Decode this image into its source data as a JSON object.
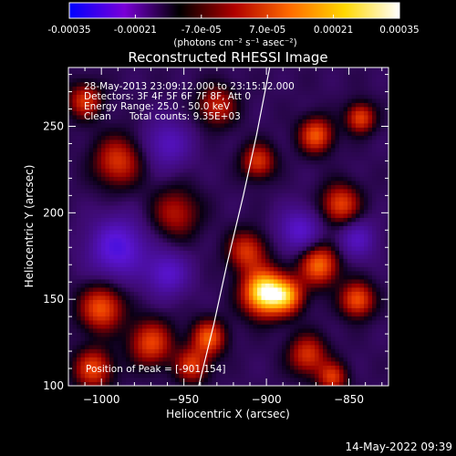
{
  "colorbar": {
    "tick_labels": [
      "-0.00035",
      "-0.00021",
      "-7.0e-05",
      "7.0e-05",
      "0.00021",
      "0.00035"
    ],
    "tick_values": [
      -0.00035,
      -0.00021,
      -7e-05,
      7e-05,
      0.00021,
      0.00035
    ],
    "range": [
      -0.00035,
      0.00035
    ],
    "unit_label": "(photons cm⁻² s⁻¹ asec⁻²)",
    "colors": [
      "#0000ff",
      "#7a00d8",
      "#000000",
      "#b00000",
      "#ff6a00",
      "#ffd800",
      "#ffffff"
    ]
  },
  "chart_data": {
    "type": "heatmap",
    "title": "Reconstructed RHESSI Image",
    "xlabel": "Heliocentric X (arcsec)",
    "ylabel": "Heliocentric Y (arcsec)",
    "xlim": [
      -1020,
      -826
    ],
    "ylim": [
      100,
      284
    ],
    "xticks": [
      -1000,
      -950,
      -900,
      -850
    ],
    "yticks": [
      100,
      150,
      200,
      250
    ],
    "xtick_labels": [
      "−1000",
      "−950",
      "−900",
      "−850"
    ],
    "ytick_labels": [
      "100",
      "150",
      "200",
      "250"
    ],
    "limb_line": [
      [
        -941,
        100
      ],
      [
        -932,
        135
      ],
      [
        -924,
        170
      ],
      [
        -914,
        210
      ],
      [
        -906,
        245
      ],
      [
        -898,
        284
      ]
    ],
    "sources": [
      {
        "x": -901,
        "y": 154,
        "amp": 1.0,
        "sigma": 9
      },
      {
        "x": -887,
        "y": 152,
        "amp": 0.55,
        "sigma": 7
      },
      {
        "x": -912,
        "y": 178,
        "amp": 0.45,
        "sigma": 8
      },
      {
        "x": -868,
        "y": 170,
        "amp": 0.6,
        "sigma": 8
      },
      {
        "x": -845,
        "y": 150,
        "amp": 0.55,
        "sigma": 7
      },
      {
        "x": -855,
        "y": 205,
        "amp": 0.5,
        "sigma": 8
      },
      {
        "x": -870,
        "y": 245,
        "amp": 0.55,
        "sigma": 7
      },
      {
        "x": -843,
        "y": 255,
        "amp": 0.5,
        "sigma": 6
      },
      {
        "x": -935,
        "y": 128,
        "amp": 0.55,
        "sigma": 7
      },
      {
        "x": -945,
        "y": 112,
        "amp": 0.45,
        "sigma": 7
      },
      {
        "x": -970,
        "y": 125,
        "amp": 0.5,
        "sigma": 9
      },
      {
        "x": -1000,
        "y": 145,
        "amp": 0.55,
        "sigma": 9
      },
      {
        "x": -1005,
        "y": 110,
        "amp": 0.5,
        "sigma": 8
      },
      {
        "x": -990,
        "y": 230,
        "amp": 0.45,
        "sigma": 10
      },
      {
        "x": -1010,
        "y": 265,
        "amp": 0.45,
        "sigma": 7
      },
      {
        "x": -930,
        "y": 262,
        "amp": 0.4,
        "sigma": 8
      },
      {
        "x": -905,
        "y": 230,
        "amp": 0.45,
        "sigma": 7
      },
      {
        "x": -875,
        "y": 118,
        "amp": 0.45,
        "sigma": 8
      },
      {
        "x": -860,
        "y": 105,
        "amp": 0.45,
        "sigma": 6
      },
      {
        "x": -955,
        "y": 200,
        "amp": 0.35,
        "sigma": 10
      },
      {
        "x": -990,
        "y": 180,
        "amp": -0.45,
        "sigma": 12
      },
      {
        "x": -960,
        "y": 165,
        "amp": -0.35,
        "sigma": 9
      },
      {
        "x": -880,
        "y": 190,
        "amp": -0.35,
        "sigma": 9
      },
      {
        "x": -960,
        "y": 240,
        "amp": -0.3,
        "sigma": 10
      },
      {
        "x": -845,
        "y": 185,
        "amp": -0.3,
        "sigma": 8
      }
    ]
  },
  "info_lines": [
    "28-May-2013 23:09:12.000 to 23:15:12.000",
    "Detectors: 3F 4F 5F 6F 7F 8F, Att 0",
    "Energy Range: 25.0 - 50.0 keV",
    "Clean      Total counts: 9.35E+03"
  ],
  "peak_label": "Position of Peak = [-901,154]",
  "timestamp": "14-May-2022 09:39"
}
